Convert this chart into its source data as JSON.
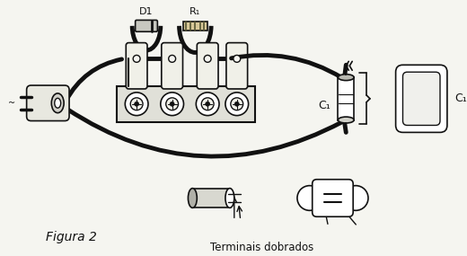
{
  "fig_label": "Figura 2",
  "terminal_label": "Terminais dobrados",
  "D1_label": "D1",
  "R1_label": "R₁",
  "C1_label_cap": "C₁",
  "C1_label_motor": "C₁",
  "bg_color": "#f5f5f0",
  "line_color": "#111111",
  "fig_width": 5.2,
  "fig_height": 2.85,
  "dpi": 100
}
